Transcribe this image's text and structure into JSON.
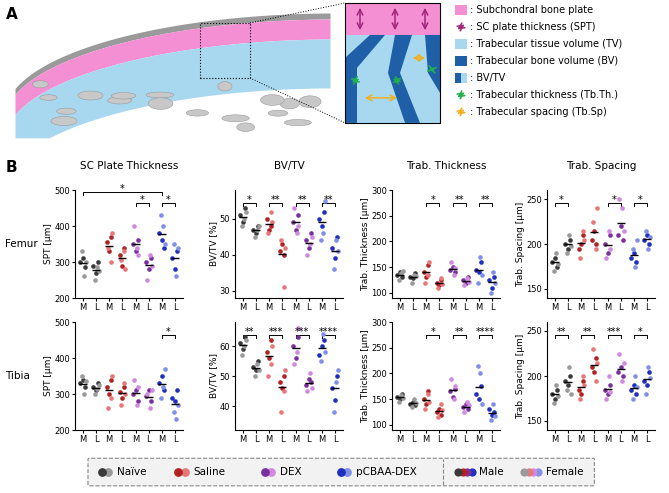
{
  "panel_labels": [
    "A",
    "B"
  ],
  "diagram_legend": [
    {
      "text": ": Subchondral bone plate",
      "color": "#f48fd4",
      "marker": "patch"
    },
    {
      "text": ": SC plate thickness (SPT)",
      "color": "#a0267a",
      "marker": "arrow"
    },
    {
      "text": ": Trabecular tissue volume (TV)",
      "color": "#a8d8f0",
      "marker": "patch"
    },
    {
      "text": ": Trabecular bone volume (BV)",
      "color": "#1f5fa8",
      "marker": "patch"
    },
    {
      "text": ": BV/TV",
      "color": "#1f5fa8",
      "marker": "split"
    },
    {
      "text": ": Trabecular thickness (Tb.Th.)",
      "color": "#22b04a",
      "marker": "arrow"
    },
    {
      "text": ": Trabecular spacing (Tb.Sp)",
      "color": "#f0b020",
      "marker": "arrow"
    }
  ],
  "rows": [
    "Femur",
    "Tibia"
  ],
  "groups": [
    {
      "name": "Naïve",
      "male_color": "#3a3a3a",
      "female_color": "#9a9a9a"
    },
    {
      "name": "Saline",
      "male_color": "#b22222",
      "female_color": "#e87878"
    },
    {
      "name": "DEX",
      "male_color": "#7b2f9e",
      "female_color": "#d08adf"
    },
    {
      "name": "pCBAA-DEX",
      "male_color": "#1f2fc0",
      "female_color": "#8090e8"
    }
  ],
  "sex_legend": [
    "Male",
    "Female"
  ],
  "chart_data": [
    {
      "type": "scatter",
      "title": "SC Plate Thickness",
      "ylabel": "SPT [µm]",
      "categories": [
        "M",
        "L",
        "M",
        "L",
        "M",
        "L",
        "M",
        "L"
      ],
      "ylim": [
        200,
        500
      ],
      "yticks": [
        200,
        300,
        400,
        500
      ],
      "male": [
        [
          300,
          310,
          285
        ],
        [
          290,
          270,
          300
        ],
        [
          355,
          330,
          370
        ],
        [
          320,
          290,
          340
        ],
        [
          350,
          330,
          360
        ],
        [
          300,
          280,
          310
        ],
        [
          380,
          360,
          340
        ],
        [
          310,
          280,
          330
        ]
      ],
      "female": [
        [
          330,
          260,
          300
        ],
        [
          250,
          285,
          275
        ],
        [
          340,
          300,
          380
        ],
        [
          305,
          330,
          280
        ],
        [
          400,
          340,
          320
        ],
        [
          250,
          320,
          290
        ],
        [
          430,
          400,
          350
        ],
        [
          350,
          260,
          340
        ]
      ],
      "significance": [
        {
          "from": 0,
          "to": 6,
          "label": "*"
        },
        {
          "from": 4,
          "to": 5,
          "label": "*"
        },
        {
          "from": 6,
          "to": 7,
          "label": "*"
        }
      ]
    },
    {
      "type": "scatter",
      "title": "BV/TV",
      "ylabel": "BV/TV [%]",
      "categories": [
        "M",
        "L",
        "M",
        "L",
        "M",
        "L",
        "M",
        "L"
      ],
      "ylim": [
        28,
        58
      ],
      "yticks": [
        30,
        40,
        50
      ],
      "male": [
        [
          51,
          49,
          53
        ],
        [
          47,
          46,
          48
        ],
        [
          50,
          47,
          48
        ],
        [
          41,
          43,
          40
        ],
        [
          49,
          47,
          51
        ],
        [
          44,
          42,
          46
        ],
        [
          50,
          48,
          52
        ],
        [
          42,
          39,
          45
        ]
      ],
      "female": [
        [
          48,
          50,
          52
        ],
        [
          45,
          47,
          48
        ],
        [
          46,
          52,
          49
        ],
        [
          44,
          31,
          42
        ],
        [
          53,
          46,
          48
        ],
        [
          40,
          43,
          45
        ],
        [
          44,
          46,
          55
        ],
        [
          36,
          44,
          41
        ]
      ],
      "significance": [
        {
          "from": 0,
          "to": 1,
          "label": "*"
        },
        {
          "from": 2,
          "to": 3,
          "label": "**"
        },
        {
          "from": 4,
          "to": 5,
          "label": "**"
        },
        {
          "from": 6,
          "to": 7,
          "label": "**"
        }
      ]
    },
    {
      "type": "scatter",
      "title": "Trab. Thickness",
      "ylabel": "Trab. Thickness [µm]",
      "categories": [
        "M",
        "L",
        "M",
        "L",
        "M",
        "L",
        "M",
        "L"
      ],
      "ylim": [
        90,
        300
      ],
      "yticks": [
        100,
        150,
        200,
        250,
        300
      ],
      "male": [
        [
          135,
          140,
          130
        ],
        [
          130,
          128,
          138
        ],
        [
          140,
          130,
          155
        ],
        [
          120,
          115,
          125
        ],
        [
          145,
          150,
          140
        ],
        [
          125,
          120,
          130
        ],
        [
          145,
          140,
          160
        ],
        [
          125,
          110,
          130
        ]
      ],
      "female": [
        [
          125,
          138,
          142
        ],
        [
          120,
          135,
          132
        ],
        [
          120,
          135,
          160
        ],
        [
          110,
          128,
          118
        ],
        [
          160,
          135,
          148
        ],
        [
          115,
          128,
          122
        ],
        [
          120,
          170,
          135
        ],
        [
          100,
          140,
          120
        ]
      ],
      "significance": [
        {
          "from": 2,
          "to": 3,
          "label": "*"
        },
        {
          "from": 4,
          "to": 5,
          "label": "**"
        },
        {
          "from": 6,
          "to": 7,
          "label": "**"
        }
      ]
    },
    {
      "type": "scatter",
      "title": "Trab. Spacing",
      "ylabel": "Trab. Spacing [µm]",
      "categories": [
        "M",
        "L",
        "M",
        "L",
        "M",
        "L",
        "M",
        "L"
      ],
      "ylim": [
        140,
        260
      ],
      "yticks": [
        150,
        200,
        250
      ],
      "male": [
        [
          180,
          185,
          175
        ],
        [
          200,
          195,
          205
        ],
        [
          195,
          200,
          210
        ],
        [
          205,
          215,
          200
        ],
        [
          200,
          190,
          210
        ],
        [
          210,
          220,
          205
        ],
        [
          185,
          190,
          180
        ],
        [
          205,
          210,
          200
        ]
      ],
      "female": [
        [
          170,
          190,
          178
        ],
        [
          190,
          210,
          198
        ],
        [
          185,
          215,
          205
        ],
        [
          225,
          195,
          240
        ],
        [
          185,
          215,
          195
        ],
        [
          250,
          240,
          215
        ],
        [
          195,
          175,
          205
        ],
        [
          215,
          195,
          208
        ]
      ],
      "significance": [
        {
          "from": 0,
          "to": 1,
          "label": "*"
        },
        {
          "from": 4,
          "to": 5,
          "label": "*"
        },
        {
          "from": 6,
          "to": 7,
          "label": "*"
        }
      ]
    },
    {
      "type": "scatter",
      "ylabel": "SPT [µm]",
      "categories": [
        "M",
        "L",
        "M",
        "L",
        "M",
        "L",
        "M",
        "L"
      ],
      "ylim": [
        200,
        500
      ],
      "yticks": [
        200,
        300,
        400,
        500
      ],
      "male": [
        [
          330,
          340,
          320
        ],
        [
          320,
          310,
          330
        ],
        [
          320,
          300,
          340
        ],
        [
          305,
          290,
          320
        ],
        [
          300,
          310,
          280
        ],
        [
          295,
          310,
          280
        ],
        [
          330,
          350,
          310
        ],
        [
          290,
          280,
          310
        ]
      ],
      "female": [
        [
          350,
          300,
          335
        ],
        [
          300,
          315,
          325
        ],
        [
          260,
          290,
          350
        ],
        [
          270,
          330,
          300
        ],
        [
          340,
          270,
          320
        ],
        [
          300,
          260,
          310
        ],
        [
          290,
          320,
          370
        ],
        [
          250,
          230,
          270
        ]
      ],
      "significance": [
        {
          "from": 6,
          "to": 7,
          "label": "*"
        }
      ]
    },
    {
      "type": "scatter",
      "ylabel": "BV/TV [%]",
      "categories": [
        "M",
        "L",
        "M",
        "L",
        "M",
        "L",
        "M",
        "L"
      ],
      "ylim": [
        32,
        68
      ],
      "yticks": [
        40,
        50,
        60
      ],
      "male": [
        [
          61,
          59,
          63
        ],
        [
          53,
          52,
          55
        ],
        [
          58,
          56,
          62
        ],
        [
          48,
          46,
          50
        ],
        [
          60,
          56,
          63
        ],
        [
          47,
          49,
          48
        ],
        [
          57,
          60,
          62
        ],
        [
          46,
          42,
          50
        ]
      ],
      "female": [
        [
          57,
          60,
          62
        ],
        [
          50,
          54,
          52
        ],
        [
          50,
          54,
          60
        ],
        [
          38,
          45,
          52
        ],
        [
          54,
          58,
          66
        ],
        [
          45,
          51,
          46
        ],
        [
          55,
          64,
          58
        ],
        [
          38,
          48,
          52
        ]
      ],
      "significance": [
        {
          "from": 0,
          "to": 1,
          "label": "**"
        },
        {
          "from": 2,
          "to": 3,
          "label": "***"
        },
        {
          "from": 4,
          "to": 5,
          "label": "***"
        },
        {
          "from": 6,
          "to": 7,
          "label": "****"
        }
      ]
    },
    {
      "type": "scatter",
      "ylabel": "Trab. Thickness [µm]",
      "categories": [
        "M",
        "L",
        "M",
        "L",
        "M",
        "L",
        "M",
        "L"
      ],
      "ylim": [
        90,
        300
      ],
      "yticks": [
        100,
        150,
        200,
        250,
        300
      ],
      "male": [
        [
          155,
          150,
          160
        ],
        [
          140,
          145,
          138
        ],
        [
          150,
          140,
          165
        ],
        [
          125,
          130,
          120
        ],
        [
          165,
          155,
          170
        ],
        [
          135,
          140,
          130
        ],
        [
          160,
          150,
          175
        ],
        [
          130,
          120,
          125
        ]
      ],
      "female": [
        [
          145,
          158,
          152
        ],
        [
          135,
          150,
          142
        ],
        [
          130,
          160,
          145
        ],
        [
          115,
          140,
          128
        ],
        [
          190,
          150,
          175
        ],
        [
          125,
          145,
          138
        ],
        [
          215,
          200,
          140
        ],
        [
          110,
          140,
          118
        ]
      ],
      "significance": [
        {
          "from": 2,
          "to": 3,
          "label": "*"
        },
        {
          "from": 4,
          "to": 5,
          "label": "**"
        },
        {
          "from": 6,
          "to": 7,
          "label": "****"
        }
      ]
    },
    {
      "type": "scatter",
      "ylabel": "Trab. Spacing [µm]",
      "categories": [
        "M",
        "L",
        "M",
        "L",
        "M",
        "L",
        "M",
        "L"
      ],
      "ylim": [
        140,
        260
      ],
      "yticks": [
        150,
        200,
        250
      ],
      "male": [
        [
          180,
          175,
          185
        ],
        [
          195,
          190,
          200
        ],
        [
          185,
          180,
          195
        ],
        [
          210,
          205,
          220
        ],
        [
          185,
          180,
          190
        ],
        [
          205,
          210,
          200
        ],
        [
          185,
          190,
          180
        ],
        [
          195,
          190,
          205
        ]
      ],
      "female": [
        [
          170,
          190,
          178
        ],
        [
          185,
          210,
          180
        ],
        [
          175,
          200,
          190
        ],
        [
          230,
          195,
          215
        ],
        [
          175,
          200,
          182
        ],
        [
          225,
          195,
          215
        ],
        [
          175,
          200,
          188
        ],
        [
          180,
          210,
          198
        ]
      ],
      "significance": [
        {
          "from": 0,
          "to": 1,
          "label": "**"
        },
        {
          "from": 2,
          "to": 3,
          "label": "**"
        },
        {
          "from": 4,
          "to": 5,
          "label": "***"
        },
        {
          "from": 6,
          "to": 7,
          "label": "*"
        }
      ]
    }
  ]
}
